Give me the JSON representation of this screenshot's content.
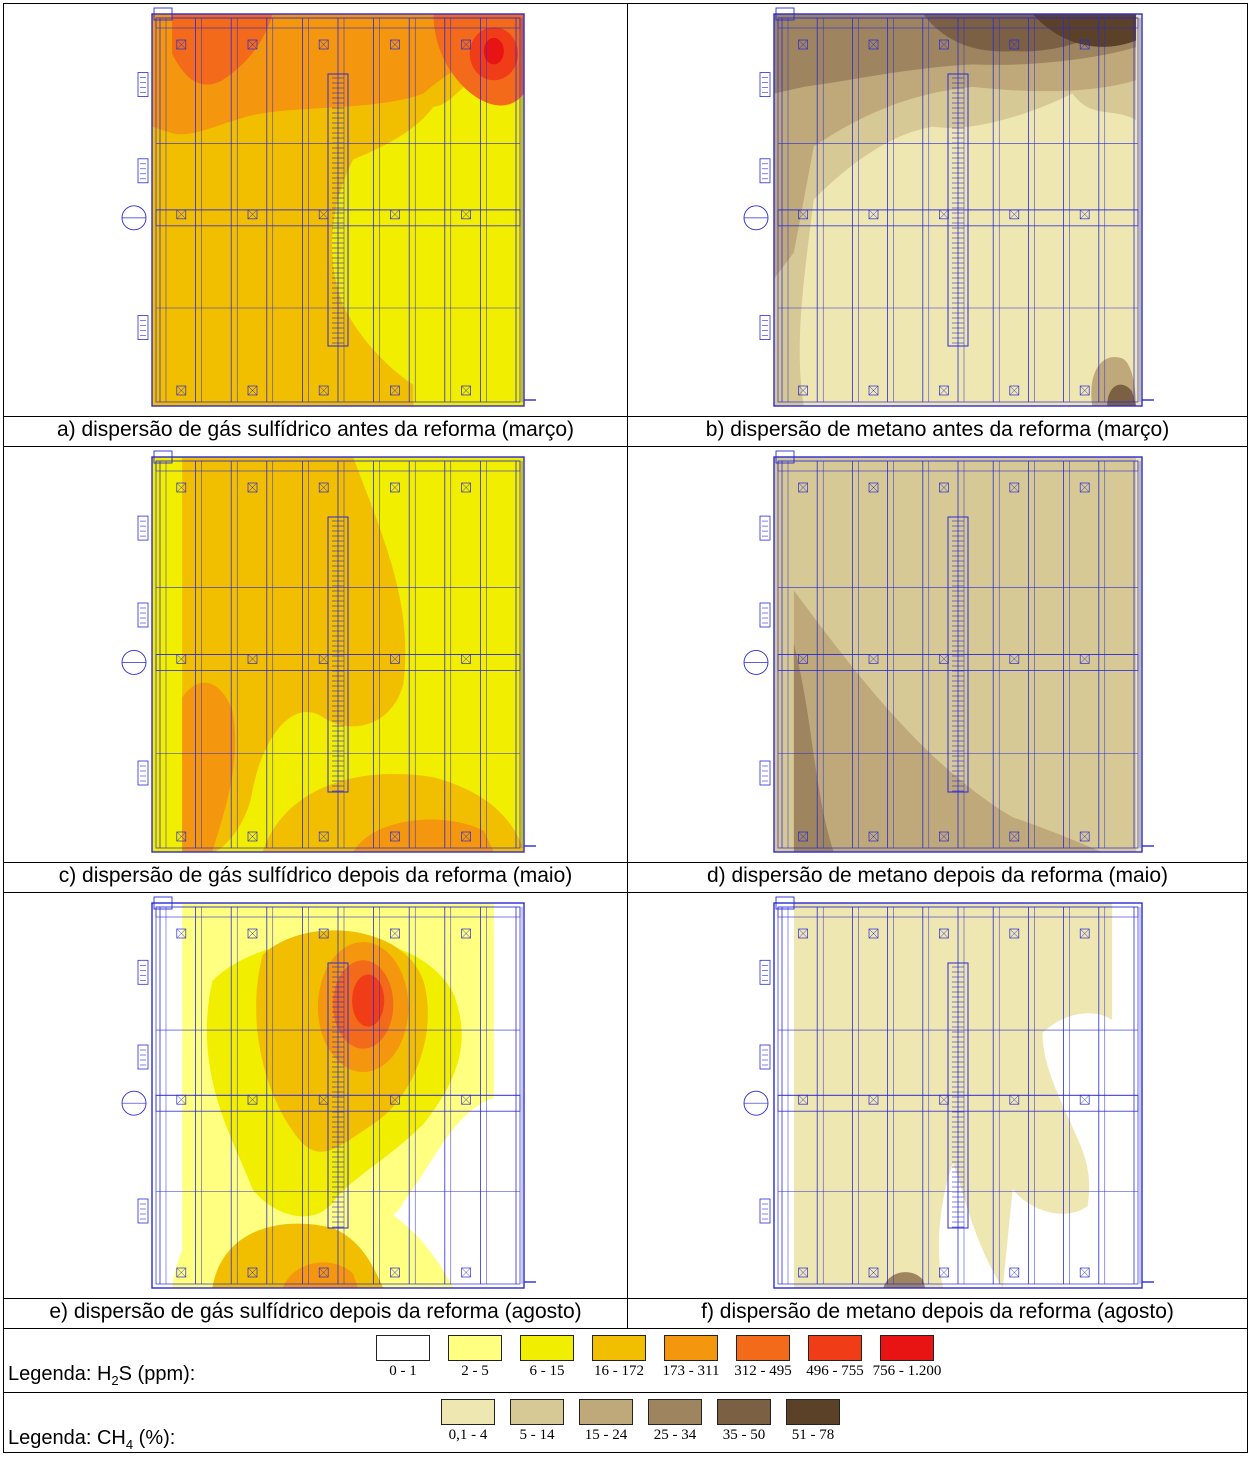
{
  "panels": [
    {
      "id": "a",
      "caption": "a) dispersão de gás sulfídrico antes da reforma (março)",
      "gas": "H2S"
    },
    {
      "id": "b",
      "caption": "b) dispersão de metano antes da reforma (março)",
      "gas": "CH4"
    },
    {
      "id": "c",
      "caption": "c) dispersão de gás sulfídrico depois da reforma (maio)",
      "gas": "H2S"
    },
    {
      "id": "d",
      "caption": "d) dispersão de metano depois da reforma (maio)",
      "gas": "CH4"
    },
    {
      "id": "e",
      "caption": "e) dispersão de gás sulfídrico depois da reforma (agosto)",
      "gas": "H2S"
    },
    {
      "id": "f",
      "caption": "f) dispersão de metano depois da reforma (agosto)",
      "gas": "CH4"
    }
  ],
  "legend_h2s": {
    "label_prefix": "Legenda: H",
    "label_sub": "2",
    "label_suffix": "S (ppm):",
    "classes": [
      {
        "range": "0 - 1",
        "color": "#ffffff"
      },
      {
        "range": "2 - 5",
        "color": "#ffff80"
      },
      {
        "range": "6 - 15",
        "color": "#f2ee00"
      },
      {
        "range": "16 - 172",
        "color": "#f2bf00"
      },
      {
        "range": "173 - 311",
        "color": "#f5960f"
      },
      {
        "range": "312 - 495",
        "color": "#f26a1a"
      },
      {
        "range": "496 - 755",
        "color": "#f03d18"
      },
      {
        "range": "756 - 1.200",
        "color": "#e81414"
      }
    ]
  },
  "legend_ch4": {
    "label_prefix": "Legenda: CH",
    "label_sub": "4",
    "label_suffix": " (%):",
    "classes": [
      {
        "range": "0,1 - 4",
        "color": "#efe7b2"
      },
      {
        "range": "5 - 14",
        "color": "#d7c995"
      },
      {
        "range": "15 - 24",
        "color": "#bfa97a"
      },
      {
        "range": "25 - 34",
        "color": "#9e8560"
      },
      {
        "range": "35 - 50",
        "color": "#7c6044"
      },
      {
        "range": "51 - 78",
        "color": "#5a4128"
      }
    ]
  }
}
